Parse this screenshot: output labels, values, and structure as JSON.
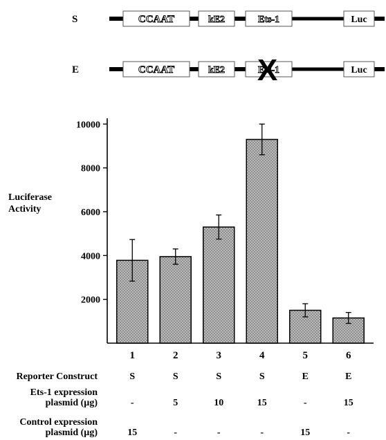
{
  "constructs": [
    {
      "label": "S",
      "elements": [
        "CCAAT",
        "kE2",
        "Ets-1",
        "Luc"
      ],
      "ets_mutated": false
    },
    {
      "label": "E",
      "elements": [
        "CCAAT",
        "kE2",
        "Ets-1",
        "Luc"
      ],
      "ets_mutated": true
    }
  ],
  "mutation_mark": "X",
  "chart_data": {
    "type": "bar",
    "categories": [
      "1",
      "2",
      "3",
      "4",
      "5",
      "6"
    ],
    "values": [
      3780,
      3950,
      5300,
      9300,
      1500,
      1150
    ],
    "errors": [
      950,
      350,
      550,
      700,
      300,
      250
    ],
    "ylabel": [
      "Luciferase",
      "Activity"
    ],
    "yticks": [
      2000,
      4000,
      6000,
      8000,
      10000
    ],
    "ylim": [
      0,
      10200
    ],
    "bar_fill": "#b9b9b9",
    "grid": false
  },
  "table": {
    "rows": [
      {
        "label": [
          "Reporter Construct"
        ],
        "values": [
          "S",
          "S",
          "S",
          "S",
          "E",
          "E"
        ]
      },
      {
        "label": [
          "Ets-1 expression",
          "plasmid (µg)"
        ],
        "values": [
          "-",
          "5",
          "10",
          "15",
          "-",
          "15"
        ]
      },
      {
        "label": [
          "Control expression",
          "plasmid (µg)"
        ],
        "values": [
          "15",
          "-",
          "-",
          "-",
          "15",
          "-"
        ]
      }
    ]
  }
}
